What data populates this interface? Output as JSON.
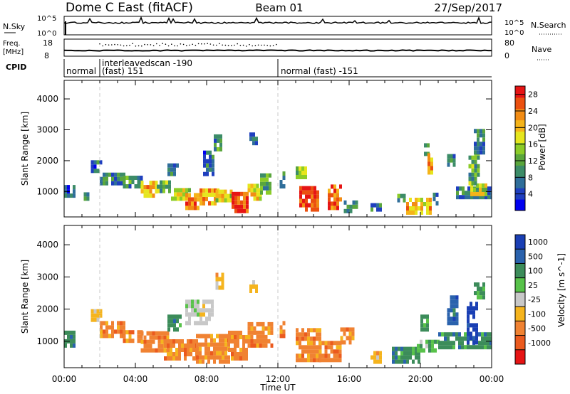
{
  "header": {
    "station": "Dome C East (fitACF)",
    "beam": "Beam 01",
    "date": "27/Sep/2017"
  },
  "top_panels": {
    "nsky": {
      "left_label": "N.Sky",
      "left_ticks": [
        "10^5",
        "10^0"
      ],
      "right_label": "N.Search",
      "right_ticks": [
        "10^5",
        "10^0"
      ]
    },
    "freq": {
      "left_label": "Freq.",
      "left_unit": "[MHz]",
      "left_ticks": [
        "18",
        "8"
      ],
      "right_label": "Nave",
      "right_ticks": [
        "80",
        "0"
      ]
    },
    "cpid": {
      "label": "CPID",
      "segments": [
        {
          "start_hour": 0.0,
          "lines": [
            "normal"
          ]
        },
        {
          "start_hour": 2.0,
          "lines": [
            "interleavedscan -190",
            "(fast) 151"
          ]
        },
        {
          "start_hour": 12.0,
          "lines": [
            "normal (fast) -151"
          ]
        }
      ]
    }
  },
  "chart_data": [
    {
      "type": "heatmap",
      "name": "power",
      "ylabel": "Slant Range [km]",
      "ylim": [
        180,
        4600
      ],
      "yticks": [
        1000,
        2000,
        3000,
        4000
      ],
      "xlim": [
        0,
        24
      ],
      "colorbar": {
        "label": "Power [dB]",
        "ticks": [
          "4",
          "8",
          "12",
          "16",
          "20",
          "24",
          "28"
        ],
        "range": [
          0,
          30
        ],
        "colors": [
          "#0000f0",
          "#1f3fbf",
          "#2f6e9a",
          "#3c8c68",
          "#5aa63c",
          "#8ccc28",
          "#e6e61e",
          "#f5b419",
          "#f28c14",
          "#eb500f",
          "#e61414"
        ]
      },
      "patches": [
        {
          "t0": 0.0,
          "t1": 0.55,
          "r0": 800,
          "r1": 1200,
          "v": 6
        },
        {
          "t0": 1.1,
          "t1": 1.3,
          "r0": 700,
          "r1": 900,
          "v": 7
        },
        {
          "t0": 1.5,
          "t1": 2.0,
          "r0": 1600,
          "r1": 1900,
          "v": 7
        },
        {
          "t0": 2.0,
          "t1": 3.3,
          "r0": 1200,
          "r1": 1600,
          "v": 8
        },
        {
          "t0": 3.3,
          "t1": 4.4,
          "r0": 1100,
          "r1": 1400,
          "v": 10
        },
        {
          "t0": 4.3,
          "t1": 5.2,
          "r0": 800,
          "r1": 1250,
          "v": 21
        },
        {
          "t0": 5.2,
          "t1": 6.0,
          "r0": 950,
          "r1": 1300,
          "v": 13
        },
        {
          "t0": 5.8,
          "t1": 6.4,
          "r0": 1500,
          "r1": 1900,
          "v": 8
        },
        {
          "t0": 6.0,
          "t1": 7.0,
          "r0": 700,
          "r1": 1100,
          "v": 17
        },
        {
          "t0": 6.8,
          "t1": 7.6,
          "r0": 400,
          "r1": 900,
          "v": 25
        },
        {
          "t0": 7.6,
          "t1": 8.6,
          "r0": 550,
          "r1": 1050,
          "v": 22
        },
        {
          "t0": 7.8,
          "t1": 8.4,
          "r0": 1500,
          "r1": 2200,
          "v": 7
        },
        {
          "t0": 8.4,
          "t1": 8.8,
          "r0": 2300,
          "r1": 2800,
          "v": 10
        },
        {
          "t0": 8.5,
          "t1": 9.4,
          "r0": 650,
          "r1": 1050,
          "v": 18
        },
        {
          "t0": 9.4,
          "t1": 10.3,
          "r0": 300,
          "r1": 950,
          "v": 27
        },
        {
          "t0": 10.3,
          "t1": 11.0,
          "r0": 700,
          "r1": 1250,
          "v": 19
        },
        {
          "t0": 11.0,
          "t1": 11.6,
          "r0": 900,
          "r1": 1500,
          "v": 12
        },
        {
          "t0": 10.4,
          "t1": 10.8,
          "r0": 2500,
          "r1": 2850,
          "v": 8
        },
        {
          "t0": 12.1,
          "t1": 12.4,
          "r0": 1100,
          "r1": 1600,
          "v": 9
        },
        {
          "t0": 13.0,
          "t1": 13.5,
          "r0": 1400,
          "r1": 1800,
          "v": 14
        },
        {
          "t0": 13.2,
          "t1": 14.3,
          "r0": 350,
          "r1": 1050,
          "v": 27
        },
        {
          "t0": 14.8,
          "t1": 15.5,
          "r0": 400,
          "r1": 1100,
          "v": 24
        },
        {
          "t0": 15.7,
          "t1": 16.4,
          "r0": 300,
          "r1": 700,
          "v": 8
        },
        {
          "t0": 17.2,
          "t1": 17.8,
          "r0": 350,
          "r1": 600,
          "v": 9
        },
        {
          "t0": 18.7,
          "t1": 19.1,
          "r0": 650,
          "r1": 900,
          "v": 9
        },
        {
          "t0": 19.2,
          "t1": 20.5,
          "r0": 250,
          "r1": 750,
          "v": 20
        },
        {
          "t0": 20.2,
          "t1": 20.5,
          "r0": 2150,
          "r1": 2500,
          "v": 12
        },
        {
          "t0": 20.4,
          "t1": 20.7,
          "r0": 1550,
          "r1": 2150,
          "v": 23
        },
        {
          "t0": 20.7,
          "t1": 21.0,
          "r0": 550,
          "r1": 850,
          "v": 9
        },
        {
          "t0": 21.5,
          "t1": 21.9,
          "r0": 1800,
          "r1": 2200,
          "v": 8
        },
        {
          "t0": 22.0,
          "t1": 24.0,
          "r0": 750,
          "r1": 1150,
          "v": 8
        },
        {
          "t0": 22.8,
          "t1": 23.7,
          "r0": 850,
          "r1": 1200,
          "v": 17
        },
        {
          "t0": 22.7,
          "t1": 23.2,
          "r0": 1200,
          "r1": 2200,
          "v": 12
        },
        {
          "t0": 23.0,
          "t1": 23.6,
          "r0": 2200,
          "r1": 2900,
          "v": 9
        }
      ]
    },
    {
      "type": "heatmap",
      "name": "velocity",
      "ylabel": "Slant Range [km]",
      "ylim": [
        180,
        4600
      ],
      "yticks": [
        1000,
        2000,
        3000,
        4000
      ],
      "xlim": [
        0,
        24
      ],
      "xticks": [
        "00:00",
        "04:00",
        "08:00",
        "12:00",
        "16:00",
        "20:00",
        "00:00"
      ],
      "xlabel": "Time UT",
      "colorbar": {
        "label": "Velocity [m s^-1]",
        "ticks": [
          "1000",
          "500",
          "100",
          "25",
          "-25",
          "-100",
          "-500",
          "-1000"
        ],
        "classes": [
          "1000",
          "500",
          "100",
          "25",
          "-25",
          "-100",
          "-500",
          "-1000"
        ],
        "colors": [
          "#1a3fb4",
          "#2a62ad",
          "#3c8c5a",
          "#58c24a",
          "#c8c8c8",
          "#f5b41e",
          "#f08232",
          "#eb5a1e",
          "#e61414"
        ]
      },
      "patches": [
        {
          "t0": 0.0,
          "t1": 0.55,
          "r0": 800,
          "r1": 1200,
          "c": 2
        },
        {
          "t0": 1.5,
          "t1": 2.0,
          "r0": 1600,
          "r1": 1900,
          "c": 5
        },
        {
          "t0": 2.0,
          "t1": 3.3,
          "r0": 1100,
          "r1": 1500,
          "c": 6
        },
        {
          "t0": 3.3,
          "t1": 4.4,
          "r0": 950,
          "r1": 1300,
          "c": 6
        },
        {
          "t0": 4.3,
          "t1": 5.8,
          "r0": 650,
          "r1": 1200,
          "c": 6
        },
        {
          "t0": 5.8,
          "t1": 6.6,
          "r0": 1300,
          "r1": 1800,
          "c": 2
        },
        {
          "t0": 5.6,
          "t1": 7.4,
          "r0": 400,
          "r1": 1000,
          "c": 6
        },
        {
          "t0": 6.8,
          "t1": 8.4,
          "r0": 1500,
          "r1": 2200,
          "c": 4
        },
        {
          "t0": 7.4,
          "t1": 9.2,
          "r0": 300,
          "r1": 1150,
          "c": 6
        },
        {
          "t0": 8.5,
          "t1": 8.9,
          "r0": 2600,
          "r1": 3100,
          "c": 5
        },
        {
          "t0": 9.2,
          "t1": 10.3,
          "r0": 400,
          "r1": 1200,
          "c": 6
        },
        {
          "t0": 10.3,
          "t1": 11.6,
          "r0": 800,
          "r1": 1500,
          "c": 6
        },
        {
          "t0": 10.4,
          "t1": 10.8,
          "r0": 2500,
          "r1": 2850,
          "c": 5
        },
        {
          "t0": 12.1,
          "t1": 12.4,
          "r0": 1100,
          "r1": 1600,
          "c": 6
        },
        {
          "t0": 13.0,
          "t1": 14.3,
          "r0": 350,
          "r1": 1350,
          "c": 6
        },
        {
          "t0": 14.3,
          "t1": 15.5,
          "r0": 350,
          "r1": 900,
          "c": 6
        },
        {
          "t0": 15.5,
          "t1": 16.2,
          "r0": 900,
          "r1": 1300,
          "c": 6
        },
        {
          "t0": 17.2,
          "t1": 17.8,
          "r0": 300,
          "r1": 600,
          "c": 5
        },
        {
          "t0": 18.4,
          "t1": 20.0,
          "r0": 300,
          "r1": 700,
          "c": 2
        },
        {
          "t0": 19.8,
          "t1": 21.0,
          "r0": 650,
          "r1": 950,
          "c": 3
        },
        {
          "t0": 20.0,
          "t1": 20.4,
          "r0": 1300,
          "r1": 1800,
          "c": 2
        },
        {
          "t0": 21.0,
          "t1": 24.0,
          "r0": 750,
          "r1": 1150,
          "c": 2
        },
        {
          "t0": 21.5,
          "t1": 22.0,
          "r0": 1500,
          "r1": 2300,
          "c": 1
        },
        {
          "t0": 22.6,
          "t1": 23.2,
          "r0": 900,
          "r1": 2100,
          "c": 0
        },
        {
          "t0": 23.0,
          "t1": 23.5,
          "r0": 2300,
          "r1": 2800,
          "c": 2
        }
      ]
    }
  ]
}
